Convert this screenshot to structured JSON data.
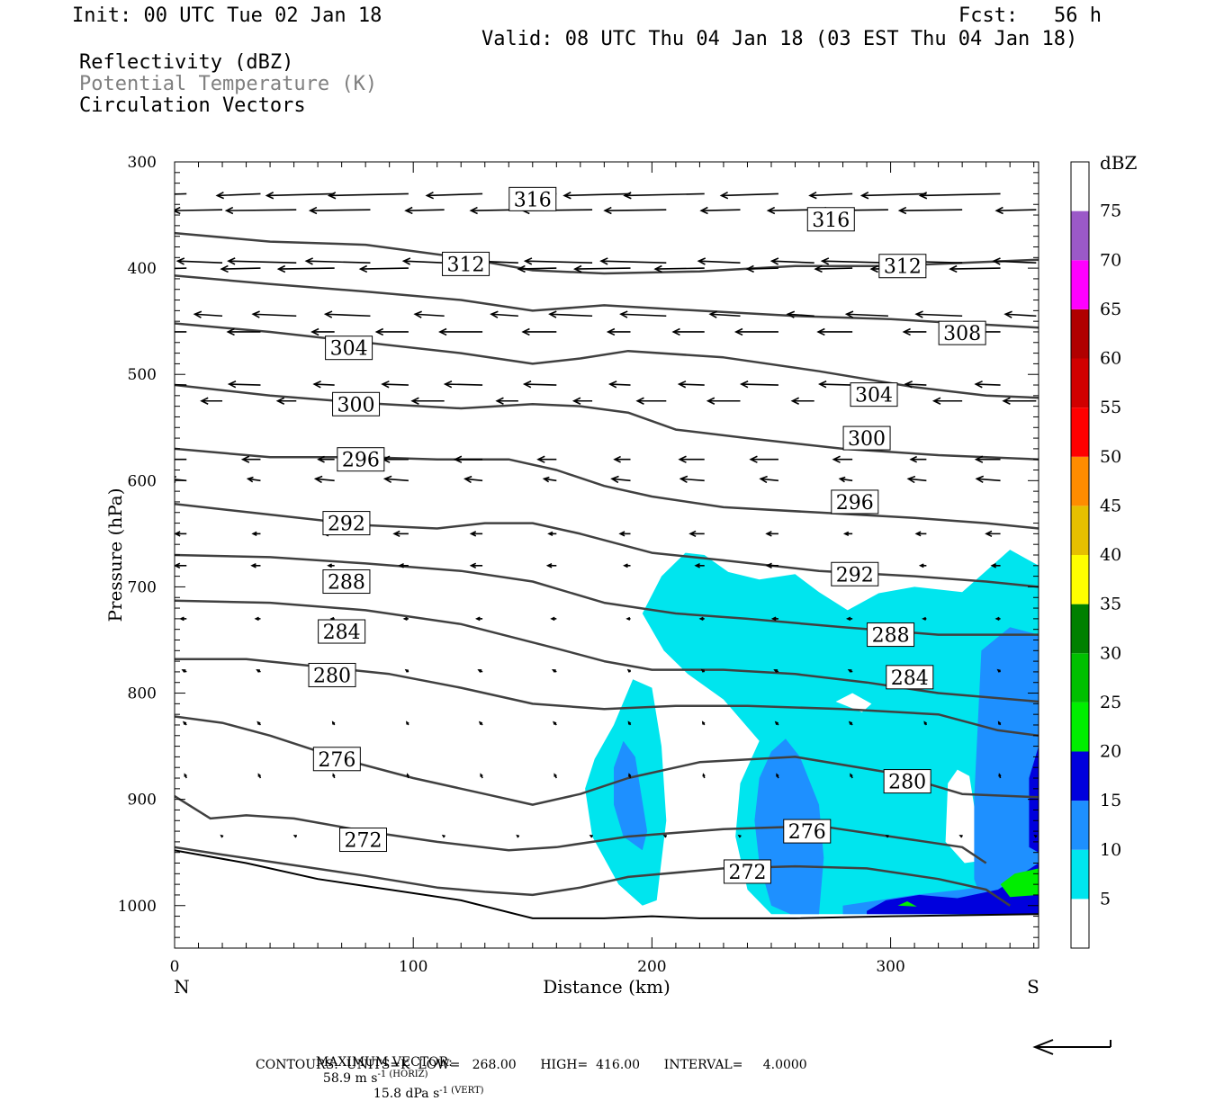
{
  "header": {
    "init": "Init: 00 UTC Tue 02 Jan 18",
    "fcst": "Fcst:   56 h",
    "valid": "Valid: 08 UTC Thu 04 Jan 18 (03 EST Thu 04 Jan 18)",
    "field1": "Reflectivity (dBZ)",
    "field2": "Potential Temperature (K)",
    "field3": "Circulation Vectors"
  },
  "colors": {
    "field2_text": "#808080",
    "theta_line": "#404040",
    "terrain_line": "#000000"
  },
  "footer": {
    "max_vector_label": "MAXIMUM VECTOR:",
    "max_vector_horiz": "58.9 m s",
    "max_vector_horiz_unit": "-1 (HORIZ)",
    "max_vector_vert": "15.8 dPa s",
    "max_vector_vert_unit": "-1 (VERT)",
    "contours_line": "CONTOURS:  UNITS=K  LOW=   268.00      HIGH=  416.00      INTERVAL=     4.0000"
  },
  "chart_data": {
    "type": "cross-section",
    "xlabel": "Distance (km)",
    "ylabel": "Pressure (hPa)",
    "xlim": [
      0,
      362
    ],
    "ylim": [
      1040,
      300
    ],
    "x_ticks": [
      0,
      100,
      200,
      300
    ],
    "y_ticks": [
      300,
      400,
      500,
      600,
      700,
      800,
      900,
      1000
    ],
    "x_end_labels": {
      "left": "N",
      "right": "S"
    },
    "colorbar": {
      "unit": "dBZ",
      "levels": [
        5,
        10,
        15,
        20,
        25,
        30,
        35,
        40,
        45,
        50,
        55,
        60,
        65,
        70,
        75
      ],
      "colors": [
        "#ffffff",
        "#00e5ee",
        "#1e90ff",
        "#0000dd",
        "#00ee00",
        "#00c000",
        "#008000",
        "#ffff00",
        "#e6c000",
        "#ff8c00",
        "#ff0000",
        "#d00000",
        "#b00000",
        "#ff00ff",
        "#9b59c8",
        "#ffffff"
      ]
    },
    "theta_contours": [
      {
        "label": "272",
        "points": [
          [
            0,
            945
          ],
          [
            20,
            952
          ],
          [
            50,
            962
          ],
          [
            80,
            972
          ],
          [
            110,
            983
          ],
          [
            130,
            987
          ],
          [
            150,
            990
          ],
          [
            170,
            983
          ],
          [
            190,
            973
          ],
          [
            230,
            965
          ],
          [
            260,
            963
          ],
          [
            290,
            965
          ],
          [
            320,
            975
          ],
          [
            340,
            985
          ],
          [
            350,
            1000
          ]
        ],
        "labels_at": [
          [
            79,
            938
          ],
          [
            240,
            968
          ]
        ]
      },
      {
        "label": "276",
        "points": [
          [
            0,
            897
          ],
          [
            15,
            918
          ],
          [
            30,
            915
          ],
          [
            50,
            918
          ],
          [
            80,
            930
          ],
          [
            110,
            940
          ],
          [
            140,
            948
          ],
          [
            160,
            945
          ],
          [
            190,
            935
          ],
          [
            230,
            928
          ],
          [
            270,
            925
          ],
          [
            300,
            935
          ],
          [
            330,
            945
          ],
          [
            340,
            960
          ]
        ],
        "labels_at": [
          [
            68,
            862
          ],
          [
            265,
            930
          ]
        ]
      },
      {
        "label": "280",
        "points": [
          [
            0,
            822
          ],
          [
            20,
            828
          ],
          [
            40,
            840
          ],
          [
            70,
            862
          ],
          [
            100,
            880
          ],
          [
            130,
            895
          ],
          [
            150,
            905
          ],
          [
            170,
            895
          ],
          [
            190,
            880
          ],
          [
            220,
            865
          ],
          [
            260,
            860
          ],
          [
            300,
            875
          ],
          [
            330,
            895
          ],
          [
            362,
            898
          ]
        ],
        "labels_at": [
          [
            66,
            783
          ],
          [
            307,
            883
          ]
        ]
      },
      {
        "label": "284",
        "points": [
          [
            0,
            768
          ],
          [
            30,
            768
          ],
          [
            60,
            775
          ],
          [
            90,
            782
          ],
          [
            120,
            795
          ],
          [
            150,
            810
          ],
          [
            180,
            815
          ],
          [
            210,
            812
          ],
          [
            240,
            812
          ],
          [
            280,
            815
          ],
          [
            320,
            820
          ],
          [
            345,
            835
          ],
          [
            362,
            840
          ]
        ],
        "labels_at": [
          [
            70,
            742
          ],
          [
            308,
            785
          ]
        ]
      },
      {
        "label": "288",
        "points": [
          [
            0,
            713
          ],
          [
            40,
            715
          ],
          [
            80,
            722
          ],
          [
            120,
            735
          ],
          [
            160,
            758
          ],
          [
            180,
            770
          ],
          [
            200,
            778
          ],
          [
            230,
            778
          ],
          [
            260,
            782
          ],
          [
            290,
            790
          ],
          [
            320,
            800
          ],
          [
            362,
            808
          ]
        ],
        "labels_at": [
          [
            72,
            695
          ],
          [
            300,
            745
          ]
        ]
      },
      {
        "label": "292",
        "points": [
          [
            0,
            670
          ],
          [
            40,
            672
          ],
          [
            80,
            678
          ],
          [
            120,
            685
          ],
          [
            150,
            695
          ],
          [
            180,
            715
          ],
          [
            210,
            725
          ],
          [
            240,
            730
          ],
          [
            280,
            738
          ],
          [
            320,
            745
          ],
          [
            362,
            745
          ]
        ],
        "labels_at": [
          [
            72,
            640
          ],
          [
            285,
            688
          ]
        ]
      },
      {
        "label": "296",
        "points": [
          [
            0,
            622
          ],
          [
            40,
            632
          ],
          [
            80,
            642
          ],
          [
            110,
            645
          ],
          [
            130,
            640
          ],
          [
            150,
            640
          ],
          [
            170,
            650
          ],
          [
            200,
            668
          ],
          [
            230,
            675
          ],
          [
            270,
            685
          ],
          [
            310,
            690
          ],
          [
            340,
            695
          ],
          [
            362,
            700
          ]
        ],
        "labels_at": [
          [
            78,
            580
          ],
          [
            285,
            620
          ]
        ]
      },
      {
        "label": "300",
        "points": [
          [
            0,
            570
          ],
          [
            40,
            578
          ],
          [
            80,
            578
          ],
          [
            110,
            580
          ],
          [
            140,
            580
          ],
          [
            160,
            590
          ],
          [
            180,
            605
          ],
          [
            200,
            615
          ],
          [
            230,
            625
          ],
          [
            270,
            630
          ],
          [
            310,
            635
          ],
          [
            340,
            640
          ],
          [
            362,
            645
          ]
        ],
        "labels_at": [
          [
            76,
            528
          ],
          [
            290,
            560
          ]
        ]
      },
      {
        "label": "304",
        "points": [
          [
            0,
            510
          ],
          [
            40,
            520
          ],
          [
            80,
            527
          ],
          [
            120,
            532
          ],
          [
            150,
            528
          ],
          [
            170,
            530
          ],
          [
            190,
            536
          ],
          [
            210,
            552
          ],
          [
            240,
            560
          ],
          [
            280,
            570
          ],
          [
            320,
            576
          ],
          [
            362,
            580
          ]
        ],
        "labels_at": [
          [
            73,
            475
          ],
          [
            293,
            519
          ]
        ]
      },
      {
        "label": "308",
        "points": [
          [
            0,
            452
          ],
          [
            40,
            460
          ],
          [
            80,
            470
          ],
          [
            120,
            480
          ],
          [
            150,
            490
          ],
          [
            170,
            485
          ],
          [
            190,
            478
          ],
          [
            230,
            484
          ],
          [
            270,
            497
          ],
          [
            310,
            512
          ],
          [
            340,
            520
          ],
          [
            362,
            522
          ]
        ],
        "labels_at": [
          [
            330,
            461
          ]
        ]
      },
      {
        "label": "312",
        "points": [
          [
            0,
            407
          ],
          [
            40,
            415
          ],
          [
            80,
            422
          ],
          [
            120,
            430
          ],
          [
            150,
            440
          ],
          [
            180,
            435
          ],
          [
            220,
            440
          ],
          [
            260,
            445
          ],
          [
            300,
            448
          ],
          [
            330,
            452
          ],
          [
            362,
            456
          ]
        ],
        "labels_at": [
          [
            122,
            396
          ],
          [
            305,
            398
          ]
        ]
      },
      {
        "label": "316",
        "points": [
          [
            0,
            367
          ],
          [
            40,
            375
          ],
          [
            80,
            378
          ],
          [
            120,
            390
          ],
          [
            150,
            402
          ],
          [
            180,
            405
          ],
          [
            220,
            403
          ],
          [
            260,
            398
          ],
          [
            300,
            398
          ],
          [
            330,
            395
          ],
          [
            362,
            392
          ]
        ],
        "labels_at": [
          [
            150,
            335
          ],
          [
            275,
            354
          ]
        ]
      }
    ],
    "terrain": [
      [
        0,
        948
      ],
      [
        30,
        960
      ],
      [
        60,
        975
      ],
      [
        90,
        985
      ],
      [
        120,
        995
      ],
      [
        150,
        1012
      ],
      [
        180,
        1012
      ],
      [
        200,
        1010
      ],
      [
        220,
        1012
      ],
      [
        260,
        1012
      ],
      [
        300,
        1010
      ],
      [
        362,
        1008
      ]
    ]
  }
}
